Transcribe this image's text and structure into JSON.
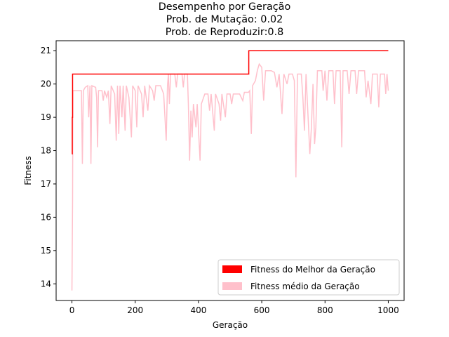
{
  "chart_data": {
    "type": "line",
    "title_lines": [
      "Desempenho por Geração",
      "Prob. de Mutação: 0.02",
      "Prob. de Reproduzir:0.8"
    ],
    "xlabel": "Geração",
    "ylabel": "Fitness",
    "xlim": [
      -50,
      1050
    ],
    "ylim": [
      13.5,
      21.3
    ],
    "xticks": [
      0,
      200,
      400,
      600,
      800,
      1000
    ],
    "yticks": [
      14,
      15,
      16,
      17,
      18,
      19,
      20,
      21
    ],
    "grid": false,
    "legend_position": "lower-right",
    "series": [
      {
        "name": "Fitness do Melhor da Geração",
        "color": "#ff0000",
        "points": [
          [
            0,
            17.9
          ],
          [
            1,
            19.0
          ],
          [
            2,
            20.3
          ],
          [
            150,
            20.3
          ],
          [
            300,
            20.3
          ],
          [
            450,
            20.3
          ],
          [
            558,
            20.3
          ],
          [
            559,
            21.0
          ],
          [
            700,
            21.0
          ],
          [
            850,
            21.0
          ],
          [
            1000,
            21.0
          ]
        ]
      },
      {
        "name": "Fitness médio da Geração",
        "color": "#ffc0cb",
        "points": [
          [
            0,
            13.8
          ],
          [
            2,
            16.5
          ],
          [
            3,
            19.8
          ],
          [
            30,
            19.8
          ],
          [
            33,
            17.6
          ],
          [
            36,
            19.8
          ],
          [
            42,
            19.9
          ],
          [
            50,
            19.95
          ],
          [
            53,
            19.0
          ],
          [
            57,
            19.95
          ],
          [
            60,
            17.6
          ],
          [
            63,
            19.95
          ],
          [
            75,
            19.9
          ],
          [
            78,
            19.6
          ],
          [
            81,
            18.1
          ],
          [
            84,
            19.8
          ],
          [
            95,
            19.8
          ],
          [
            99,
            19.5
          ],
          [
            103,
            19.8
          ],
          [
            110,
            19.6
          ],
          [
            115,
            19.8
          ],
          [
            120,
            18.8
          ],
          [
            124,
            19.95
          ],
          [
            135,
            19.7
          ],
          [
            140,
            18.3
          ],
          [
            144,
            19.95
          ],
          [
            148,
            18.5
          ],
          [
            152,
            19.95
          ],
          [
            158,
            19.0
          ],
          [
            162,
            19.95
          ],
          [
            168,
            18.6
          ],
          [
            172,
            19.95
          ],
          [
            180,
            19.6
          ],
          [
            188,
            18.4
          ],
          [
            192,
            19.95
          ],
          [
            200,
            19.8
          ],
          [
            205,
            18.7
          ],
          [
            209,
            19.95
          ],
          [
            220,
            19.7
          ],
          [
            225,
            19.0
          ],
          [
            230,
            19.95
          ],
          [
            240,
            19.2
          ],
          [
            245,
            19.95
          ],
          [
            255,
            19.8
          ],
          [
            260,
            19.5
          ],
          [
            265,
            19.95
          ],
          [
            280,
            19.95
          ],
          [
            290,
            19.7
          ],
          [
            298,
            18.3
          ],
          [
            302,
            19.95
          ],
          [
            305,
            20.3
          ],
          [
            308,
            19.4
          ],
          [
            312,
            20.3
          ],
          [
            325,
            20.3
          ],
          [
            330,
            19.9
          ],
          [
            334,
            20.3
          ],
          [
            348,
            20.3
          ],
          [
            352,
            19.9
          ],
          [
            356,
            20.3
          ],
          [
            365,
            20.3
          ],
          [
            368,
            19.4
          ],
          [
            372,
            17.7
          ],
          [
            376,
            19.2
          ],
          [
            380,
            18.4
          ],
          [
            384,
            19.4
          ],
          [
            392,
            18.7
          ],
          [
            396,
            19.4
          ],
          [
            405,
            17.7
          ],
          [
            409,
            19.4
          ],
          [
            420,
            19.7
          ],
          [
            430,
            19.7
          ],
          [
            435,
            19.2
          ],
          [
            440,
            19.7
          ],
          [
            450,
            18.6
          ],
          [
            454,
            19.7
          ],
          [
            465,
            19.4
          ],
          [
            470,
            18.9
          ],
          [
            474,
            19.7
          ],
          [
            485,
            19.0
          ],
          [
            490,
            19.7
          ],
          [
            500,
            19.7
          ],
          [
            505,
            19.4
          ],
          [
            510,
            19.7
          ],
          [
            530,
            19.7
          ],
          [
            540,
            19.5
          ],
          [
            545,
            19.75
          ],
          [
            558,
            19.75
          ],
          [
            562,
            19.8
          ],
          [
            567,
            18.5
          ],
          [
            571,
            19.95
          ],
          [
            580,
            20.1
          ],
          [
            586,
            20.4
          ],
          [
            592,
            20.6
          ],
          [
            600,
            20.5
          ],
          [
            606,
            19.5
          ],
          [
            612,
            20.4
          ],
          [
            630,
            20.4
          ],
          [
            640,
            20.35
          ],
          [
            648,
            19.9
          ],
          [
            655,
            20.3
          ],
          [
            664,
            19.1
          ],
          [
            670,
            20.3
          ],
          [
            680,
            20.0
          ],
          [
            686,
            20.3
          ],
          [
            697,
            20.3
          ],
          [
            703,
            20.1
          ],
          [
            708,
            17.2
          ],
          [
            713,
            20.3
          ],
          [
            725,
            20.3
          ],
          [
            730,
            19.6
          ],
          [
            735,
            18.6
          ],
          [
            740,
            20.3
          ],
          [
            752,
            17.9
          ],
          [
            757,
            18.7
          ],
          [
            762,
            20.0
          ],
          [
            767,
            18.2
          ],
          [
            771,
            18.7
          ],
          [
            776,
            20.4
          ],
          [
            790,
            20.4
          ],
          [
            794,
            19.8
          ],
          [
            800,
            20.4
          ],
          [
            806,
            19.5
          ],
          [
            812,
            20.4
          ],
          [
            825,
            20.4
          ],
          [
            830,
            19.4
          ],
          [
            835,
            20.4
          ],
          [
            848,
            20.4
          ],
          [
            853,
            18.1
          ],
          [
            857,
            20.4
          ],
          [
            870,
            20.4
          ],
          [
            876,
            19.7
          ],
          [
            882,
            20.4
          ],
          [
            895,
            20.4
          ],
          [
            900,
            19.7
          ],
          [
            906,
            20.4
          ],
          [
            925,
            20.4
          ],
          [
            930,
            19.6
          ],
          [
            936,
            20.1
          ],
          [
            940,
            19.8
          ],
          [
            945,
            19.4
          ],
          [
            950,
            20.3
          ],
          [
            965,
            20.3
          ],
          [
            970,
            19.3
          ],
          [
            975,
            20.3
          ],
          [
            988,
            20.3
          ],
          [
            992,
            19.7
          ],
          [
            996,
            20.3
          ],
          [
            1000,
            19.8
          ]
        ]
      }
    ]
  }
}
